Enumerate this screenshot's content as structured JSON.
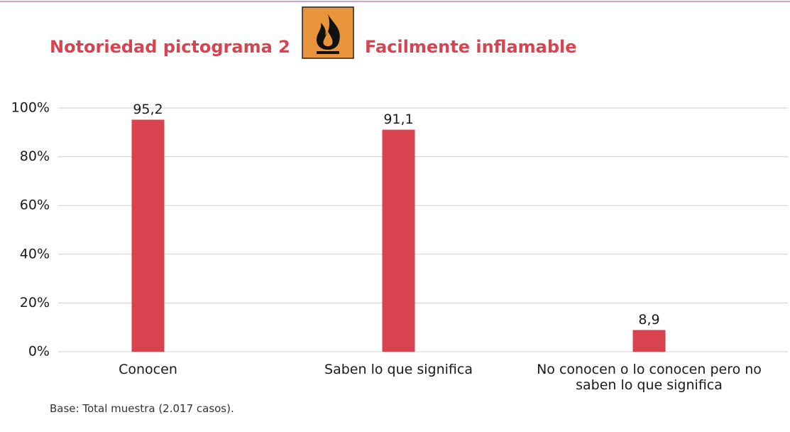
{
  "chart_data": {
    "type": "bar",
    "title": "Notoriedad pictograma 2",
    "subtitle": "Facilmente inflamable",
    "note": "Base: Total muestra (2.017 casos).",
    "categories": [
      "Conocen",
      "Saben lo que significa",
      "No conocen o lo conocen pero no saben lo que significa"
    ],
    "values": [
      95.2,
      91.1,
      8.9
    ],
    "value_labels": [
      "95,2",
      "91,1",
      "8,9"
    ],
    "color": "#d9434f",
    "ylim": [
      0,
      100
    ],
    "yticks": [
      {
        "value": 0,
        "label": "0%"
      },
      {
        "value": 20,
        "label": "20%"
      },
      {
        "value": 40,
        "label": "40%"
      },
      {
        "value": 60,
        "label": "60%"
      },
      {
        "value": 80,
        "label": "80%"
      },
      {
        "value": 100,
        "label": "100%"
      }
    ],
    "grid": true
  }
}
